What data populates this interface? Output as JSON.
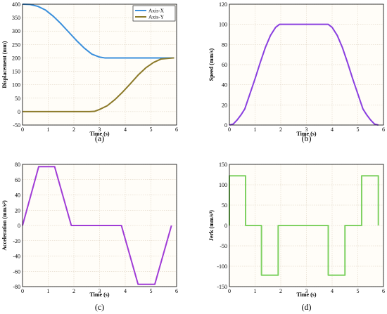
{
  "chart_data": [
    {
      "type": "line",
      "panel_label": "(a)",
      "xlabel": "Time (s)",
      "ylabel": "Displacement (mm)",
      "xlim": [
        0,
        6
      ],
      "ylim": [
        -50,
        400
      ],
      "xticks": [
        0,
        1,
        2,
        3,
        4,
        5,
        6
      ],
      "yticks": [
        -50,
        0,
        50,
        100,
        150,
        200,
        250,
        300,
        350,
        400
      ],
      "grid": true,
      "legend": "top-right",
      "series": [
        {
          "name": "Axis-X",
          "color": "#3a8fdc",
          "x": [
            0,
            0.3,
            0.6,
            0.9,
            1.2,
            1.5,
            1.8,
            2.1,
            2.4,
            2.7,
            3.0,
            3.2,
            4.0,
            5.0,
            5.9
          ],
          "y": [
            400,
            399,
            392,
            378,
            355,
            327,
            296,
            265,
            237,
            214,
            203,
            200,
            200,
            200,
            200
          ]
        },
        {
          "name": "Axis-Y",
          "color": "#8c7a2a",
          "x": [
            0,
            1.0,
            2.0,
            2.6,
            2.8,
            3.0,
            3.3,
            3.6,
            3.9,
            4.2,
            4.5,
            4.8,
            5.1,
            5.4,
            5.9
          ],
          "y": [
            0,
            0,
            0,
            0,
            1,
            8,
            22,
            45,
            73,
            104,
            136,
            163,
            183,
            196,
            200
          ]
        }
      ]
    },
    {
      "type": "line",
      "panel_label": "(b)",
      "xlabel": "Time (s)",
      "ylabel": "Speed (mm/s)",
      "xlim": [
        0,
        6
      ],
      "ylim": [
        0,
        120
      ],
      "xticks": [
        0,
        1,
        2,
        3,
        4,
        5,
        6
      ],
      "yticks": [
        0,
        20,
        40,
        60,
        80,
        100,
        120
      ],
      "grid": true,
      "series": [
        {
          "color": "#8a3fe0",
          "x": [
            0,
            0.15,
            0.3,
            0.45,
            0.6,
            0.8,
            1.0,
            1.2,
            1.4,
            1.6,
            1.8,
            1.95,
            3.85,
            4.0,
            4.2,
            4.4,
            4.6,
            4.8,
            5.0,
            5.2,
            5.35,
            5.5,
            5.65,
            5.8
          ],
          "y": [
            0,
            1,
            5,
            10,
            16,
            31,
            46,
            62,
            77,
            89,
            97,
            100,
            100,
            97,
            89,
            77,
            62,
            46,
            31,
            16,
            10,
            5,
            1,
            0
          ]
        }
      ]
    },
    {
      "type": "line",
      "panel_label": "(c)",
      "xlabel": "Time (s)",
      "ylabel": "Acceleration (mm/s²)",
      "xlim": [
        0,
        6
      ],
      "ylim": [
        -80,
        80
      ],
      "xticks": [
        0,
        1,
        2,
        3,
        4,
        5,
        6
      ],
      "yticks": [
        -80,
        -60,
        -40,
        -20,
        0,
        20,
        40,
        60,
        80
      ],
      "grid": true,
      "series": [
        {
          "color": "#a03cd6",
          "x": [
            0,
            0.63,
            1.25,
            1.9,
            3.85,
            4.5,
            5.15,
            5.8
          ],
          "y": [
            0,
            77,
            77,
            0,
            0,
            -77,
            -77,
            0
          ]
        }
      ]
    },
    {
      "type": "line",
      "panel_label": "(d)",
      "xlabel": "Time (s)",
      "ylabel": "Jerk (mm/s³)",
      "xlim": [
        0,
        6
      ],
      "ylim": [
        -150,
        150
      ],
      "xticks": [
        0,
        1,
        2,
        3,
        4,
        5,
        6
      ],
      "yticks": [
        -150,
        -100,
        -50,
        0,
        50,
        100,
        150
      ],
      "grid": true,
      "series": [
        {
          "color": "#7fd162",
          "x": [
            0,
            0,
            0.63,
            0.63,
            1.25,
            1.25,
            1.9,
            1.9,
            3.85,
            3.85,
            4.5,
            4.5,
            5.15,
            5.15,
            5.8,
            5.8
          ],
          "y": [
            0,
            122,
            122,
            0,
            0,
            -122,
            -122,
            0,
            0,
            -122,
            -122,
            0,
            0,
            122,
            122,
            0
          ]
        }
      ]
    }
  ]
}
